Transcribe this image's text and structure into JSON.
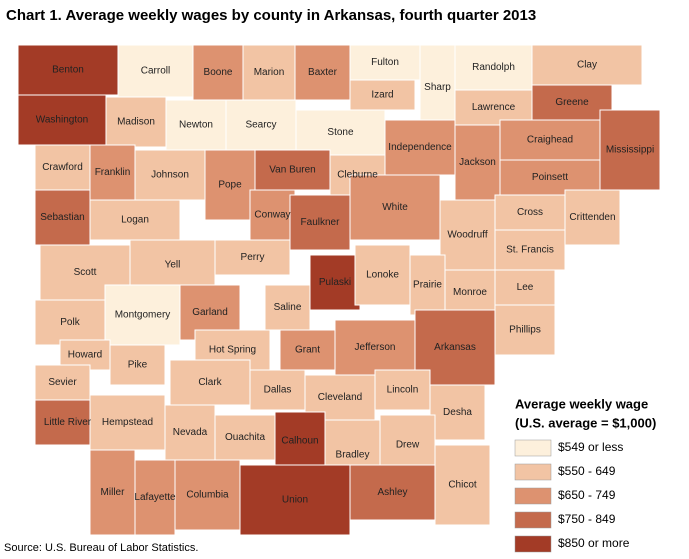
{
  "title": "Chart 1. Average weekly wages by county in Arkansas, fourth quarter 2013",
  "legend": {
    "title": "Average weekly wage",
    "subtitle": "(U.S. average = $1,000)",
    "items": [
      {
        "label": "$549 or less",
        "color": "#fdf0dc"
      },
      {
        "label": "$550 - 649",
        "color": "#f2c4a4"
      },
      {
        "label": "$650 - 749",
        "color": "#dd9270"
      },
      {
        "label": "$750 - 849",
        "color": "#c46a4c"
      },
      {
        "label": "$850 or more",
        "color": "#a33b26"
      }
    ]
  },
  "counties": [
    {
      "name": "Benton",
      "color": "#a33b26"
    },
    {
      "name": "Carroll",
      "color": "#fdf0dc"
    },
    {
      "name": "Boone",
      "color": "#dd9270"
    },
    {
      "name": "Marion",
      "color": "#f2c4a4"
    },
    {
      "name": "Baxter",
      "color": "#dd9270"
    },
    {
      "name": "Fulton",
      "color": "#fdf0dc"
    },
    {
      "name": "Sharp",
      "color": "#fdf0dc"
    },
    {
      "name": "Randolph",
      "color": "#fdf0dc"
    },
    {
      "name": "Clay",
      "color": "#f2c4a4"
    },
    {
      "name": "Washington",
      "color": "#a33b26"
    },
    {
      "name": "Madison",
      "color": "#f2c4a4"
    },
    {
      "name": "Newton",
      "color": "#fdf0dc"
    },
    {
      "name": "Searcy",
      "color": "#fdf0dc"
    },
    {
      "name": "Izard",
      "color": "#f2c4a4"
    },
    {
      "name": "Stone",
      "color": "#fdf0dc"
    },
    {
      "name": "Lawrence",
      "color": "#f2c4a4"
    },
    {
      "name": "Greene",
      "color": "#c46a4c"
    },
    {
      "name": "Crawford",
      "color": "#f2c4a4"
    },
    {
      "name": "Franklin",
      "color": "#dd9270"
    },
    {
      "name": "Johnson",
      "color": "#f2c4a4"
    },
    {
      "name": "Pope",
      "color": "#dd9270"
    },
    {
      "name": "Van Buren",
      "color": "#c46a4c"
    },
    {
      "name": "Cleburne",
      "color": "#f2c4a4"
    },
    {
      "name": "Independence",
      "color": "#dd9270"
    },
    {
      "name": "Jackson",
      "color": "#dd9270"
    },
    {
      "name": "Craighead",
      "color": "#dd9270"
    },
    {
      "name": "Mississippi",
      "color": "#c46a4c"
    },
    {
      "name": "Poinsett",
      "color": "#dd9270"
    },
    {
      "name": "Sebastian",
      "color": "#c46a4c"
    },
    {
      "name": "Logan",
      "color": "#f2c4a4"
    },
    {
      "name": "Conway",
      "color": "#dd9270"
    },
    {
      "name": "Faulkner",
      "color": "#c46a4c"
    },
    {
      "name": "White",
      "color": "#dd9270"
    },
    {
      "name": "Woodruff",
      "color": "#f2c4a4"
    },
    {
      "name": "Cross",
      "color": "#f2c4a4"
    },
    {
      "name": "Crittenden",
      "color": "#f2c4a4"
    },
    {
      "name": "Scott",
      "color": "#f2c4a4"
    },
    {
      "name": "Yell",
      "color": "#f2c4a4"
    },
    {
      "name": "Perry",
      "color": "#f2c4a4"
    },
    {
      "name": "Saline",
      "color": "#f2c4a4"
    },
    {
      "name": "Pulaski",
      "color": "#a33b26"
    },
    {
      "name": "Lonoke",
      "color": "#f2c4a4"
    },
    {
      "name": "Prairie",
      "color": "#f2c4a4"
    },
    {
      "name": "St. Francis",
      "color": "#f2c4a4"
    },
    {
      "name": "Monroe",
      "color": "#f2c4a4"
    },
    {
      "name": "Lee",
      "color": "#f2c4a4"
    },
    {
      "name": "Phillips",
      "color": "#f2c4a4"
    },
    {
      "name": "Polk",
      "color": "#f2c4a4"
    },
    {
      "name": "Montgomery",
      "color": "#fdf0dc"
    },
    {
      "name": "Garland",
      "color": "#dd9270"
    },
    {
      "name": "Hot Spring",
      "color": "#f2c4a4"
    },
    {
      "name": "Grant",
      "color": "#dd9270"
    },
    {
      "name": "Jefferson",
      "color": "#dd9270"
    },
    {
      "name": "Arkansas",
      "color": "#c46a4c"
    },
    {
      "name": "Howard",
      "color": "#f2c4a4"
    },
    {
      "name": "Pike",
      "color": "#f2c4a4"
    },
    {
      "name": "Clark",
      "color": "#f2c4a4"
    },
    {
      "name": "Dallas",
      "color": "#f2c4a4"
    },
    {
      "name": "Cleveland",
      "color": "#f2c4a4"
    },
    {
      "name": "Lincoln",
      "color": "#f2c4a4"
    },
    {
      "name": "Desha",
      "color": "#f2c4a4"
    },
    {
      "name": "Sevier",
      "color": "#f2c4a4"
    },
    {
      "name": "Little River",
      "color": "#c46a4c"
    },
    {
      "name": "Hempstead",
      "color": "#f2c4a4"
    },
    {
      "name": "Nevada",
      "color": "#f2c4a4"
    },
    {
      "name": "Ouachita",
      "color": "#f2c4a4"
    },
    {
      "name": "Calhoun",
      "color": "#a33b26"
    },
    {
      "name": "Bradley",
      "color": "#f2c4a4"
    },
    {
      "name": "Drew",
      "color": "#f2c4a4"
    },
    {
      "name": "Chicot",
      "color": "#f2c4a4"
    },
    {
      "name": "Miller",
      "color": "#dd9270"
    },
    {
      "name": "Lafayette",
      "color": "#dd9270"
    },
    {
      "name": "Columbia",
      "color": "#dd9270"
    },
    {
      "name": "Union",
      "color": "#a33b26"
    },
    {
      "name": "Ashley",
      "color": "#c46a4c"
    }
  ],
  "source": "Source: U.S. Bureau of Labor Statistics."
}
